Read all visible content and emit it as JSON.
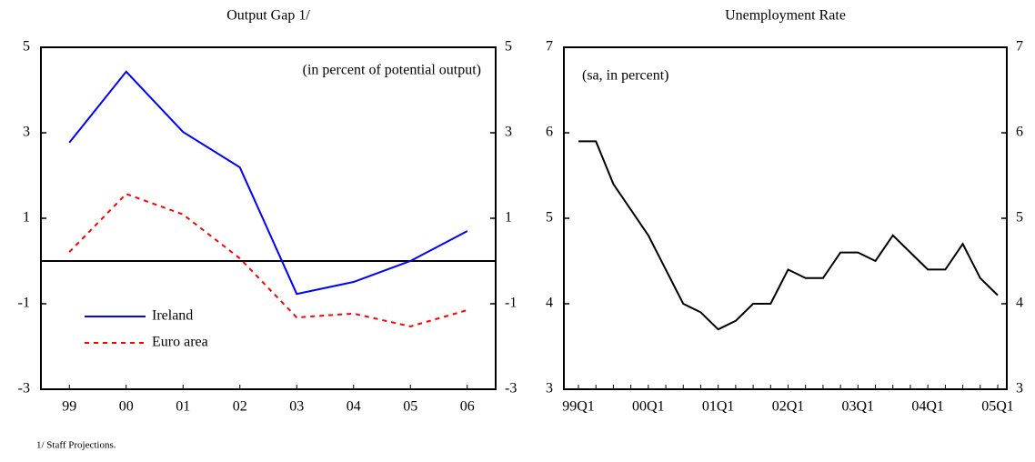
{
  "chart_data": [
    {
      "type": "line",
      "title": "Output Gap 1/",
      "annotation": "(in percent of potential output)",
      "footnote": "1/ Staff Projections.",
      "categories": [
        "99",
        "00",
        "01",
        "02",
        "03",
        "04",
        "05",
        "06"
      ],
      "series": [
        {
          "name": "Ireland",
          "color": "#0000ff",
          "line_style": "solid",
          "values": [
            2.77,
            4.43,
            3.02,
            2.19,
            -0.77,
            -0.49,
            0.0,
            0.7
          ]
        },
        {
          "name": "Euro area",
          "color": "#ff0000",
          "line_style": "dotted",
          "values": [
            0.21,
            1.57,
            1.09,
            0.06,
            -1.32,
            -1.23,
            -1.53,
            -1.15
          ]
        }
      ],
      "ylim": [
        -3,
        5
      ],
      "yticks": [
        5,
        3,
        1,
        -1,
        -3
      ],
      "y2lim": [
        -3,
        5
      ],
      "y2ticks": [
        5,
        3,
        1,
        -1,
        -3
      ],
      "hline": 0,
      "legend": "lower-left"
    },
    {
      "type": "line",
      "title": "Unemployment Rate",
      "annotation": "(sa, in percent)",
      "categories": [
        "99Q1",
        null,
        null,
        null,
        "00Q1",
        null,
        null,
        null,
        "01Q1",
        null,
        null,
        null,
        "02Q1",
        null,
        null,
        null,
        "03Q1",
        null,
        null,
        null,
        "04Q1",
        null,
        null,
        null,
        "05Q1"
      ],
      "series": [
        {
          "color": "#000000",
          "line_style": "solid",
          "values": [
            5.9,
            5.9,
            5.4,
            5.1,
            4.8,
            4.4,
            4.0,
            3.9,
            3.7,
            3.8,
            4.0,
            4.0,
            4.4,
            4.3,
            4.3,
            4.6,
            4.6,
            4.5,
            4.8,
            4.6,
            4.4,
            4.4,
            4.7,
            4.3,
            4.1
          ]
        }
      ],
      "ylim": [
        3,
        7
      ],
      "yticks": [
        7,
        6,
        5,
        4,
        3
      ],
      "y2lim": [
        3,
        7
      ],
      "y2ticks": [
        7,
        6,
        5,
        4,
        3
      ]
    }
  ]
}
